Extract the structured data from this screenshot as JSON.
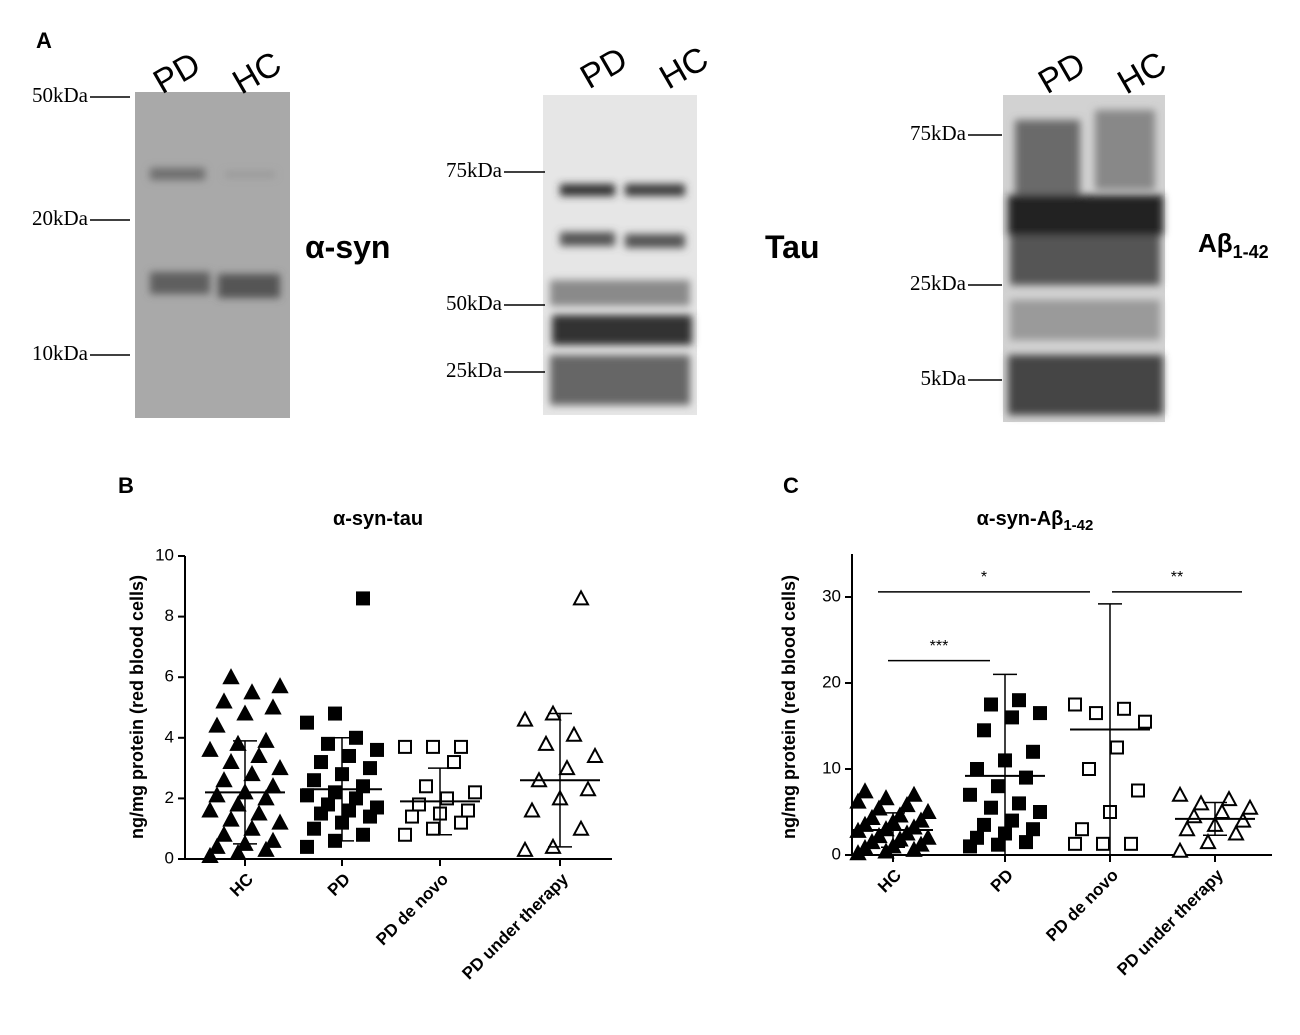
{
  "blots": {
    "label": "A",
    "items": [
      {
        "lanes": [
          "PD",
          "HC"
        ],
        "markers": [
          "50kDa",
          "20kDa",
          "10kDa"
        ],
        "protein": "α-syn"
      },
      {
        "lanes": [
          "PD",
          "HC"
        ],
        "markers": [
          "75kDa",
          "50kDa",
          "25kDa"
        ],
        "protein": "Tau"
      },
      {
        "lanes": [
          "PD",
          "HC"
        ],
        "markers": [
          "75kDa",
          "25kDa",
          "5kDa"
        ],
        "protein": "Aβ",
        "protein_sub": "1-42"
      }
    ]
  },
  "chart_data": [
    {
      "type": "scatter",
      "panel": "B",
      "title": "α-syn-tau",
      "y_label": "ng/mg protein (red blood cells)",
      "ylim": [
        0,
        10
      ],
      "yticks": [
        0,
        2,
        4,
        6,
        8,
        10
      ],
      "groups": [
        {
          "name": "HC",
          "marker": "triangle",
          "filled": true,
          "values": [
            0.1,
            0.2,
            0.3,
            0.4,
            0.5,
            0.6,
            0.8,
            1.0,
            1.2,
            1.3,
            1.5,
            1.6,
            1.8,
            2.0,
            2.1,
            2.2,
            2.4,
            2.6,
            2.8,
            3.0,
            3.2,
            3.4,
            3.6,
            3.8,
            3.9,
            4.4,
            4.8,
            5.0,
            5.2,
            5.5,
            5.7,
            6.0
          ],
          "mean": 2.2,
          "sd": 1.7
        },
        {
          "name": "PD",
          "marker": "square",
          "filled": true,
          "values": [
            0.4,
            0.6,
            0.8,
            1.0,
            1.2,
            1.4,
            1.5,
            1.6,
            1.7,
            1.8,
            2.0,
            2.1,
            2.2,
            2.4,
            2.6,
            2.8,
            3.0,
            3.2,
            3.4,
            3.6,
            3.8,
            4.0,
            4.5,
            4.8,
            8.6
          ],
          "mean": 2.3,
          "sd": 1.7
        },
        {
          "name": "PD de novo",
          "marker": "square",
          "filled": false,
          "values": [
            0.8,
            1.0,
            1.2,
            1.4,
            1.5,
            1.6,
            1.8,
            2.0,
            2.2,
            2.4,
            3.2,
            3.7,
            3.7,
            3.7
          ],
          "mean": 1.9,
          "sd": 1.1
        },
        {
          "name": "PD under therapy",
          "marker": "triangle",
          "filled": false,
          "values": [
            0.3,
            0.4,
            1.0,
            1.6,
            2.0,
            2.3,
            2.6,
            3.0,
            3.4,
            3.8,
            4.1,
            4.6,
            4.8,
            8.6
          ],
          "mean": 2.6,
          "sd": 2.2
        }
      ],
      "annotations": []
    },
    {
      "type": "scatter",
      "panel": "C",
      "title": "α-syn-Aβ",
      "title_sub": "1-42",
      "y_label": "ng/mg protein (red blood cells)",
      "ylim": [
        0,
        35
      ],
      "yticks": [
        0,
        10,
        20,
        30
      ],
      "groups": [
        {
          "name": "HC",
          "marker": "triangle",
          "filled": true,
          "values": [
            0.2,
            0.4,
            0.6,
            0.8,
            1.0,
            1.2,
            1.5,
            1.8,
            2.0,
            2.2,
            2.5,
            2.8,
            3.0,
            3.2,
            3.5,
            3.8,
            4.0,
            4.3,
            4.6,
            5.0,
            5.4,
            5.8,
            6.2,
            6.6,
            7.0,
            7.4
          ],
          "mean": 2.9,
          "sd": 2.0
        },
        {
          "name": "PD",
          "marker": "square",
          "filled": true,
          "values": [
            1.0,
            1.2,
            1.5,
            2.0,
            2.5,
            3.0,
            3.5,
            4.0,
            5.0,
            5.5,
            6.0,
            7.0,
            8.0,
            9.0,
            10.0,
            11.0,
            12.0,
            14.5,
            16.0,
            16.5,
            17.5,
            18.0
          ],
          "mean": 9.2,
          "sd": 11.8
        },
        {
          "name": "PD de novo",
          "marker": "square",
          "filled": false,
          "values": [
            1.3,
            1.3,
            1.3,
            3.0,
            5.0,
            7.5,
            10.0,
            12.5,
            15.5,
            16.5,
            17.0,
            17.5
          ],
          "mean": 14.6,
          "sd": 14.6
        },
        {
          "name": "PD under therapy",
          "marker": "triangle",
          "filled": false,
          "values": [
            0.5,
            1.5,
            2.5,
            3.0,
            3.5,
            4.0,
            4.5,
            5.0,
            5.5,
            6.0,
            6.5,
            7.0
          ],
          "mean": 4.2,
          "sd": 1.9
        }
      ],
      "annotations": [
        {
          "text": "***",
          "y": 22.6
        },
        {
          "text": "*",
          "y": 30.6
        },
        {
          "text": "**",
          "y": 30.6
        }
      ]
    }
  ]
}
